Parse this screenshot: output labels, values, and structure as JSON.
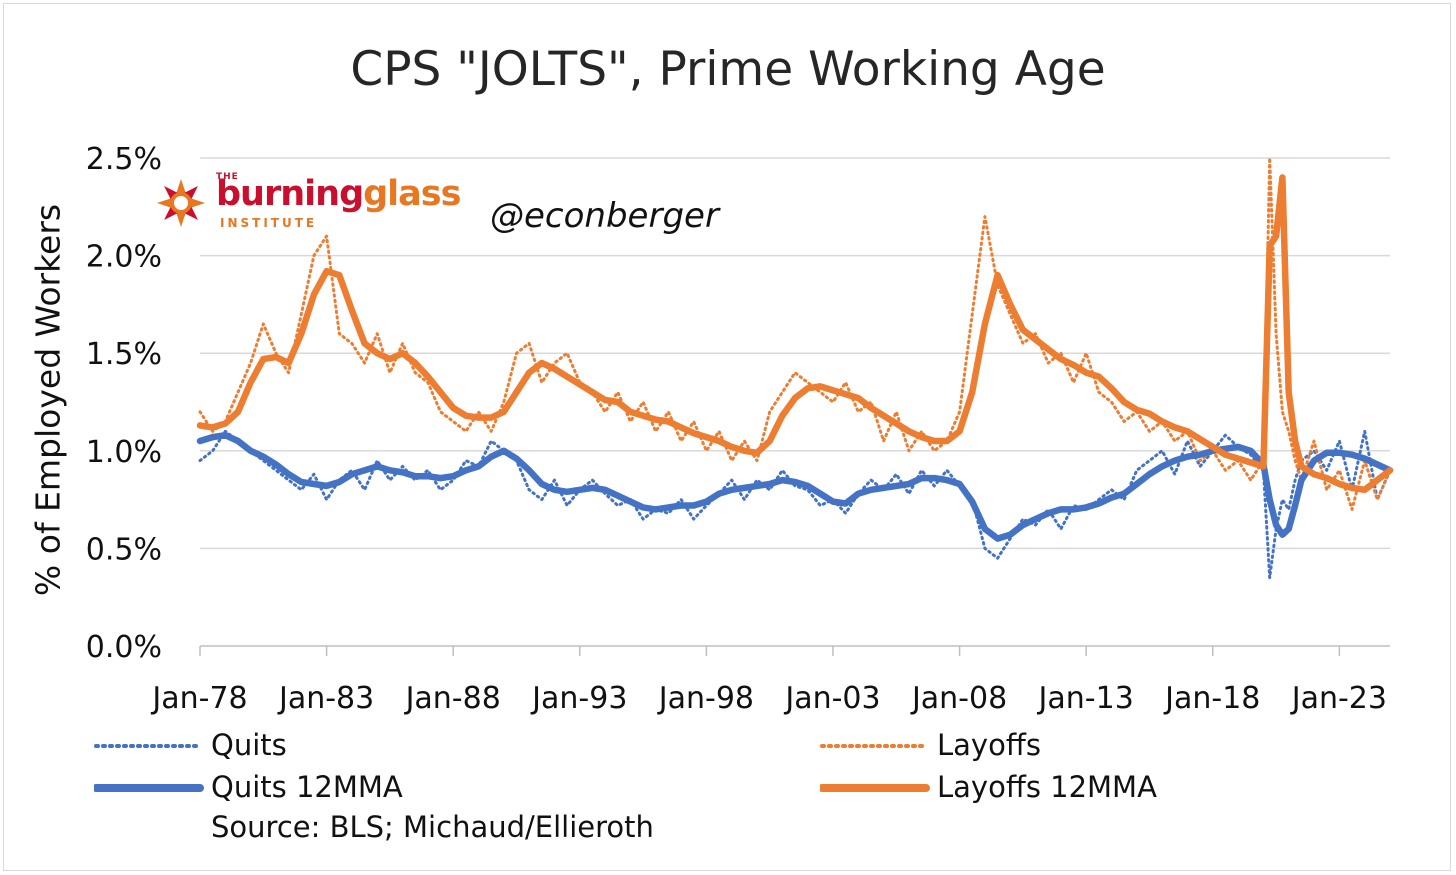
{
  "chart_data": {
    "type": "line",
    "title": "CPS \"JOLTS\", Prime Working Age",
    "ylabel": "% of Employed Workers",
    "xlabel": "",
    "ylim": [
      0.0,
      2.5
    ],
    "yticks": [
      "0.0%",
      "0.5%",
      "1.0%",
      "1.5%",
      "2.0%",
      "2.5%"
    ],
    "xlim": [
      1978.0,
      2025.0
    ],
    "xticks": [
      "Jan-78",
      "Jan-83",
      "Jan-88",
      "Jan-93",
      "Jan-98",
      "Jan-03",
      "Jan-08",
      "Jan-13",
      "Jan-18",
      "Jan-23"
    ],
    "grid": true,
    "legend_position": "bottom",
    "x": [
      1978.0,
      1978.5,
      1979.0,
      1979.5,
      1980.0,
      1980.5,
      1981.0,
      1981.5,
      1982.0,
      1982.5,
      1983.0,
      1983.5,
      1984.0,
      1984.5,
      1985.0,
      1985.5,
      1986.0,
      1986.5,
      1987.0,
      1987.5,
      1988.0,
      1988.5,
      1989.0,
      1989.5,
      1990.0,
      1990.5,
      1991.0,
      1991.5,
      1992.0,
      1992.5,
      1993.0,
      1993.5,
      1994.0,
      1994.5,
      1995.0,
      1995.5,
      1996.0,
      1996.5,
      1997.0,
      1997.5,
      1998.0,
      1998.5,
      1999.0,
      1999.5,
      2000.0,
      2000.5,
      2001.0,
      2001.5,
      2002.0,
      2002.5,
      2003.0,
      2003.5,
      2004.0,
      2004.5,
      2005.0,
      2005.5,
      2006.0,
      2006.5,
      2007.0,
      2007.5,
      2008.0,
      2008.5,
      2009.0,
      2009.5,
      2010.0,
      2010.5,
      2011.0,
      2011.5,
      2012.0,
      2012.5,
      2013.0,
      2013.5,
      2014.0,
      2014.5,
      2015.0,
      2015.5,
      2016.0,
      2016.5,
      2017.0,
      2017.5,
      2018.0,
      2018.5,
      2019.0,
      2019.5,
      2020.0,
      2020.25,
      2020.5,
      2020.75,
      2021.0,
      2021.25,
      2021.5,
      2022.0,
      2022.5,
      2023.0,
      2023.5,
      2024.0,
      2024.5,
      2025.0
    ],
    "series": [
      {
        "name": "Quits",
        "color": "#4472c4",
        "style": "dotted",
        "values": [
          0.95,
          1.0,
          1.1,
          1.05,
          1.0,
          0.95,
          0.9,
          0.85,
          0.8,
          0.88,
          0.75,
          0.85,
          0.9,
          0.8,
          0.95,
          0.85,
          0.92,
          0.85,
          0.9,
          0.8,
          0.85,
          0.95,
          0.92,
          1.05,
          1.0,
          0.95,
          0.8,
          0.75,
          0.85,
          0.72,
          0.8,
          0.85,
          0.78,
          0.72,
          0.75,
          0.65,
          0.7,
          0.68,
          0.75,
          0.65,
          0.72,
          0.78,
          0.85,
          0.75,
          0.85,
          0.8,
          0.9,
          0.82,
          0.8,
          0.72,
          0.75,
          0.68,
          0.78,
          0.85,
          0.8,
          0.88,
          0.78,
          0.9,
          0.82,
          0.9,
          0.82,
          0.75,
          0.5,
          0.45,
          0.55,
          0.65,
          0.62,
          0.7,
          0.6,
          0.72,
          0.7,
          0.75,
          0.8,
          0.75,
          0.9,
          0.95,
          1.0,
          0.88,
          1.05,
          0.92,
          1.0,
          1.08,
          1.02,
          0.98,
          0.9,
          0.35,
          0.6,
          0.75,
          0.7,
          0.85,
          0.95,
          1.0,
          0.9,
          1.05,
          0.8,
          1.1,
          0.75,
          0.9
        ]
      },
      {
        "name": "Layoffs",
        "color": "#ed7d31",
        "style": "dotted",
        "values": [
          1.2,
          1.1,
          1.15,
          1.3,
          1.45,
          1.65,
          1.5,
          1.4,
          1.7,
          2.0,
          2.1,
          1.6,
          1.55,
          1.45,
          1.6,
          1.4,
          1.55,
          1.4,
          1.35,
          1.2,
          1.15,
          1.1,
          1.2,
          1.1,
          1.25,
          1.5,
          1.55,
          1.35,
          1.45,
          1.5,
          1.35,
          1.3,
          1.2,
          1.3,
          1.15,
          1.25,
          1.1,
          1.2,
          1.05,
          1.15,
          1.0,
          1.1,
          0.95,
          1.05,
          0.95,
          1.2,
          1.3,
          1.4,
          1.35,
          1.3,
          1.25,
          1.35,
          1.2,
          1.25,
          1.05,
          1.2,
          1.0,
          1.1,
          1.0,
          1.05,
          1.2,
          1.7,
          2.2,
          1.85,
          1.7,
          1.55,
          1.6,
          1.45,
          1.5,
          1.35,
          1.5,
          1.3,
          1.25,
          1.15,
          1.2,
          1.1,
          1.15,
          1.05,
          1.1,
          0.95,
          1.0,
          0.9,
          0.95,
          0.85,
          0.95,
          2.5,
          1.6,
          1.2,
          1.1,
          0.95,
          0.85,
          1.05,
          0.8,
          0.9,
          0.7,
          0.95,
          0.75,
          0.9
        ]
      },
      {
        "name": "Quits 12MMA",
        "color": "#4472c4",
        "style": "solid",
        "values": [
          1.05,
          1.07,
          1.08,
          1.05,
          1.0,
          0.97,
          0.93,
          0.88,
          0.84,
          0.83,
          0.82,
          0.84,
          0.88,
          0.9,
          0.92,
          0.9,
          0.89,
          0.87,
          0.87,
          0.86,
          0.87,
          0.9,
          0.92,
          0.97,
          1.0,
          0.96,
          0.9,
          0.83,
          0.8,
          0.79,
          0.8,
          0.81,
          0.8,
          0.77,
          0.74,
          0.71,
          0.7,
          0.71,
          0.72,
          0.72,
          0.74,
          0.78,
          0.8,
          0.81,
          0.82,
          0.83,
          0.85,
          0.84,
          0.82,
          0.78,
          0.74,
          0.73,
          0.78,
          0.8,
          0.81,
          0.82,
          0.83,
          0.86,
          0.86,
          0.85,
          0.83,
          0.74,
          0.6,
          0.55,
          0.57,
          0.62,
          0.65,
          0.68,
          0.7,
          0.7,
          0.71,
          0.73,
          0.76,
          0.78,
          0.83,
          0.88,
          0.92,
          0.95,
          0.97,
          0.98,
          1.0,
          1.01,
          1.02,
          1.0,
          0.93,
          0.75,
          0.62,
          0.57,
          0.6,
          0.72,
          0.85,
          0.95,
          0.99,
          0.99,
          0.98,
          0.96,
          0.93,
          0.9
        ]
      },
      {
        "name": "Layoffs 12MMA",
        "color": "#ed7d31",
        "style": "solid",
        "values": [
          1.13,
          1.12,
          1.14,
          1.2,
          1.35,
          1.47,
          1.48,
          1.45,
          1.6,
          1.8,
          1.92,
          1.9,
          1.72,
          1.55,
          1.5,
          1.47,
          1.5,
          1.45,
          1.38,
          1.3,
          1.22,
          1.18,
          1.17,
          1.17,
          1.2,
          1.3,
          1.4,
          1.45,
          1.42,
          1.38,
          1.34,
          1.3,
          1.26,
          1.25,
          1.2,
          1.18,
          1.16,
          1.15,
          1.12,
          1.09,
          1.07,
          1.05,
          1.02,
          1.0,
          0.99,
          1.05,
          1.18,
          1.27,
          1.32,
          1.33,
          1.31,
          1.29,
          1.27,
          1.22,
          1.18,
          1.14,
          1.1,
          1.07,
          1.05,
          1.05,
          1.1,
          1.3,
          1.65,
          1.9,
          1.75,
          1.62,
          1.57,
          1.52,
          1.47,
          1.44,
          1.4,
          1.38,
          1.32,
          1.25,
          1.21,
          1.19,
          1.15,
          1.12,
          1.1,
          1.06,
          1.02,
          0.98,
          0.96,
          0.94,
          0.92,
          2.05,
          2.1,
          2.4,
          1.3,
          1.05,
          0.92,
          0.88,
          0.86,
          0.83,
          0.81,
          0.8,
          0.85,
          0.9
        ]
      }
    ]
  },
  "branding": {
    "logo_the": "THE",
    "logo_burning": "burning",
    "logo_glass": "glass",
    "logo_institute": "INSTITUTE",
    "handle": "@econberger",
    "logo_colors": {
      "red": "#c8102e",
      "orange": "#e87722"
    }
  },
  "source": "Source: BLS; Michaud/Ellieroth"
}
